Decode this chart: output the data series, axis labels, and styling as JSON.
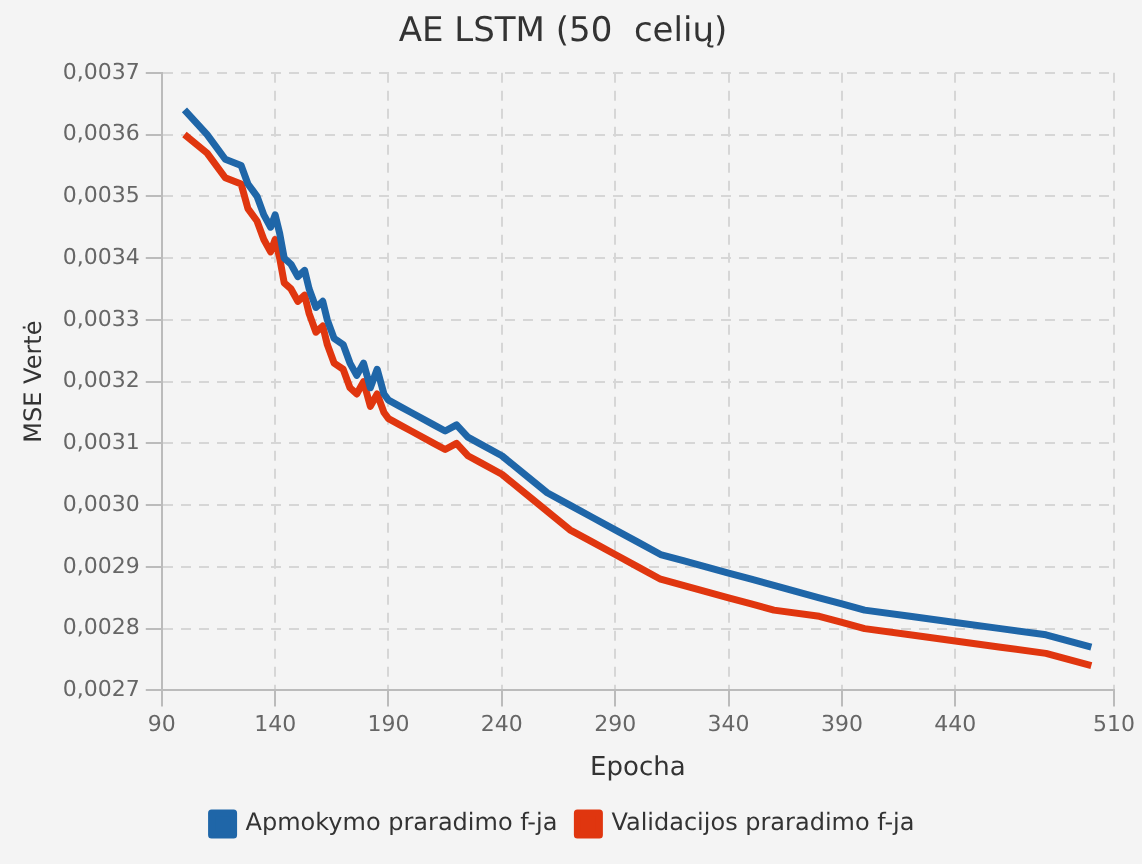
{
  "chart_data": {
    "type": "line",
    "title": "AE LSTM (50  celių)",
    "xlabel": "Epocha",
    "ylabel": "MSE Vertė",
    "xlim": [
      90,
      510
    ],
    "xticks": [
      90,
      140,
      190,
      240,
      290,
      340,
      390,
      440,
      510
    ],
    "ylim": [
      0.0027,
      0.0037
    ],
    "yticks": [
      {
        "value": 0.0027,
        "label": "0,0027"
      },
      {
        "value": 0.0028,
        "label": "0,0028"
      },
      {
        "value": 0.0029,
        "label": "0,0029"
      },
      {
        "value": 0.003,
        "label": "0,0030"
      },
      {
        "value": 0.0031,
        "label": "0,0031"
      },
      {
        "value": 0.0032,
        "label": "0,0032"
      },
      {
        "value": 0.0033,
        "label": "0,0033"
      },
      {
        "value": 0.0034,
        "label": "0,0034"
      },
      {
        "value": 0.0035,
        "label": "0,0035"
      },
      {
        "value": 0.0036,
        "label": "0,0036"
      },
      {
        "value": 0.0037,
        "label": "0,0037"
      }
    ],
    "grid": true,
    "legend": "bottom",
    "marker": "none",
    "line_style": "solid",
    "x": [
      100,
      110,
      118,
      125,
      128,
      132,
      135,
      138,
      140,
      142,
      144,
      147,
      150,
      153,
      155,
      158,
      161,
      163,
      166,
      170,
      173,
      176,
      179,
      182,
      185,
      188,
      190,
      195,
      200,
      210,
      215,
      220,
      225,
      230,
      240,
      250,
      260,
      270,
      280,
      290,
      300,
      310,
      320,
      330,
      340,
      350,
      360,
      380,
      390,
      400,
      420,
      440,
      460,
      480,
      500
    ],
    "series": [
      {
        "name": "Apmokymo praradimo f-ja",
        "color": "#1f66a8",
        "values": [
          0.00364,
          0.0036,
          0.00356,
          0.00355,
          0.00352,
          0.0035,
          0.00347,
          0.00345,
          0.00347,
          0.00344,
          0.0034,
          0.00339,
          0.00337,
          0.00338,
          0.00335,
          0.00332,
          0.00333,
          0.0033,
          0.00327,
          0.00326,
          0.00323,
          0.00321,
          0.00323,
          0.00319,
          0.00322,
          0.00318,
          0.00317,
          0.00316,
          0.00315,
          0.00313,
          0.00312,
          0.00313,
          0.00311,
          0.0031,
          0.00308,
          0.00305,
          0.00302,
          0.003,
          0.00298,
          0.00296,
          0.00294,
          0.00292,
          0.00291,
          0.0029,
          0.00289,
          0.00288,
          0.00287,
          0.00285,
          0.00284,
          0.00283,
          0.00282,
          0.00281,
          0.0028,
          0.00279,
          0.00277
        ]
      },
      {
        "name": "Validacijos praradimo f-ja",
        "color": "#e0360f",
        "values": [
          0.0036,
          0.00357,
          0.00353,
          0.00352,
          0.00348,
          0.00346,
          0.00343,
          0.00341,
          0.00343,
          0.0034,
          0.00336,
          0.00335,
          0.00333,
          0.00334,
          0.00331,
          0.00328,
          0.00329,
          0.00326,
          0.00323,
          0.00322,
          0.00319,
          0.00318,
          0.0032,
          0.00316,
          0.00318,
          0.00315,
          0.00314,
          0.00313,
          0.00312,
          0.0031,
          0.00309,
          0.0031,
          0.00308,
          0.00307,
          0.00305,
          0.00302,
          0.00299,
          0.00296,
          0.00294,
          0.00292,
          0.0029,
          0.00288,
          0.00287,
          0.00286,
          0.00285,
          0.00284,
          0.00283,
          0.00282,
          0.00281,
          0.0028,
          0.00279,
          0.00278,
          0.00277,
          0.00276,
          0.00274
        ]
      }
    ]
  }
}
